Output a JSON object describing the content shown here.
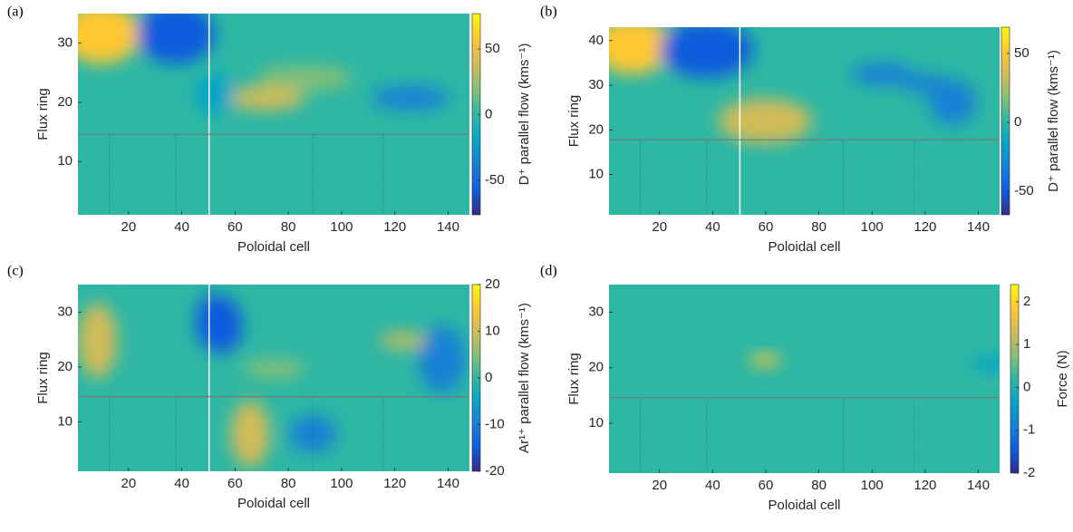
{
  "chart_data": [
    {
      "type": "heatmap",
      "panel_label": "(a)",
      "x_label": "Poloidal cell",
      "y_label": "Flux ring",
      "colorbar_label": "D⁺ parallel flow (kms⁻¹)",
      "xlim": [
        1,
        148
      ],
      "ylim": [
        1,
        35
      ],
      "xticks": [
        20,
        40,
        60,
        80,
        100,
        120,
        140
      ],
      "yticks": [
        10,
        20,
        30
      ],
      "clim": [
        -76,
        77
      ],
      "cticks": [
        -50,
        0,
        50
      ]
    },
    {
      "type": "heatmap",
      "panel_label": "(b)",
      "x_label": "Poloidal cell",
      "y_label": "Flux ring",
      "colorbar_label": "D⁺ parallel flow (kms⁻¹)",
      "xlim": [
        1,
        148
      ],
      "ylim": [
        1,
        43
      ],
      "xticks": [
        20,
        40,
        60,
        80,
        100,
        120,
        140
      ],
      "yticks": [
        10,
        20,
        30,
        40
      ],
      "clim": [
        -67,
        69
      ],
      "cticks": [
        -50,
        0,
        50
      ]
    },
    {
      "type": "heatmap",
      "panel_label": "(c)",
      "x_label": "Poloidal cell",
      "y_label": "Flux ring",
      "colorbar_label": "Ar¹⁺ parallel flow (kms⁻¹)",
      "xlim": [
        1,
        148
      ],
      "ylim": [
        1,
        35
      ],
      "xticks": [
        20,
        40,
        60,
        80,
        100,
        120,
        140
      ],
      "yticks": [
        10,
        20,
        30
      ],
      "clim": [
        -20,
        20
      ],
      "cticks": [
        -20,
        -10,
        0,
        10,
        20
      ]
    },
    {
      "type": "heatmap",
      "panel_label": "(d)",
      "x_label": "Poloidal cell",
      "y_label": "Flux ring",
      "colorbar_label": "Force (N)",
      "xlim": [
        1,
        148
      ],
      "ylim": [
        1,
        35
      ],
      "xticks": [
        20,
        40,
        60,
        80,
        100,
        120,
        140
      ],
      "yticks": [
        10,
        20,
        30
      ],
      "clim": [
        -2,
        2.4
      ],
      "cticks": [
        -2,
        -1,
        0,
        1,
        2
      ]
    }
  ],
  "colormap": [
    "#352a87",
    "#0f5cdd",
    "#1481d6",
    "#06a4ca",
    "#2eb7a4",
    "#87bf77",
    "#d1bb59",
    "#fec832",
    "#f9fb0e"
  ]
}
